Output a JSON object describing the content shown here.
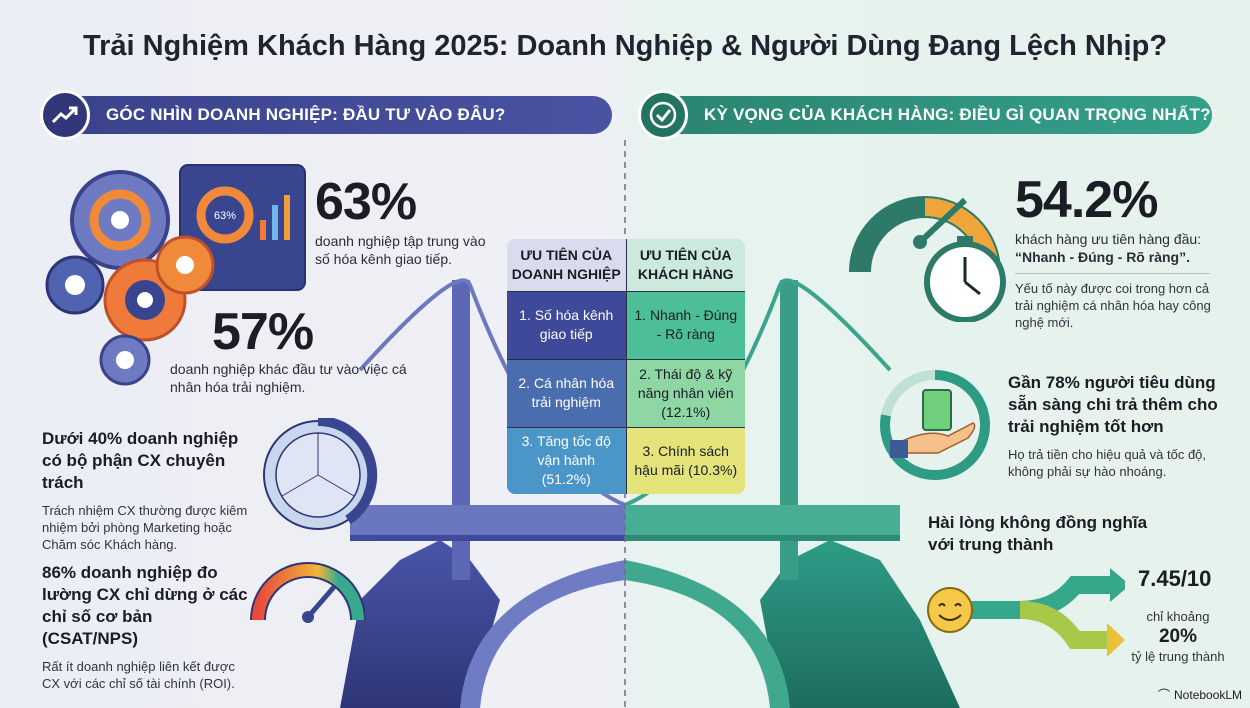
{
  "title": "Trải Nghiệm Khách Hàng 2025: Doanh Nghiệp & Người Dùng Đang Lệch Nhịp?",
  "left_banner": {
    "label": "GÓC NHÌN DOANH NGHIỆP: ĐẦU TƯ VÀO ĐÂU?",
    "icon": "trend-up-icon",
    "color": "#3f4791"
  },
  "right_banner": {
    "label": "KỲ VỌNG CỦA KHÁCH HÀNG: ĐIỀU GÌ QUAN TRỌNG NHẤT?",
    "icon": "check-circle-icon",
    "color": "#2e8b78"
  },
  "left": {
    "stat1": {
      "value": "63%",
      "text": "doanh nghiệp tập trung vào số hóa kênh giao tiếp.",
      "icon_label": "63%"
    },
    "stat2": {
      "value": "57%",
      "text": "doanh nghiệp khác đầu tư vào việc cá nhân hóa trải nghiệm."
    },
    "stat3": {
      "heading": "Dưới 40% doanh nghiệp có bộ phận CX chuyên trách",
      "text": "Trách nhiệm CX thường được kiêm nhiệm bởi phòng Marketing hoặc Chăm sóc Khách hàng."
    },
    "stat4": {
      "heading": "86% doanh nghiệp đo lường CX chỉ dừng ở các chỉ số cơ bản (CSAT/NPS)",
      "text": "Rất ít doanh nghiệp liên kết được CX với các chỉ số tài chính (ROI)."
    }
  },
  "table": {
    "headers": [
      "ƯU TIÊN CỦA DOANH NGHIỆP",
      "ƯU TIÊN CỦA KHÁCH HÀNG"
    ],
    "rows": [
      [
        "1. Số hóa kênh giao tiếp",
        "1. Nhanh - Đúng - Rõ ràng"
      ],
      [
        "2. Cá nhân hóa trải nghiệm",
        "2. Thái độ & kỹ năng nhân viên (12.1%)"
      ],
      [
        "3. Tăng tốc độ vận hành (51.2%)",
        "3. Chính sách hậu mãi (10.3%)"
      ]
    ]
  },
  "right": {
    "stat1": {
      "value": "54.2%",
      "text": "khách hàng ưu tiên hàng đầu:",
      "quote": "“Nhanh - Đúng - Rõ ràng”.",
      "note": "Yếu tố này được coi trong hơn cả trải nghiệm cá nhân hóa hay công nghệ mới."
    },
    "stat2": {
      "heading": "Gần 78% người tiêu dùng sẵn sàng chi trả thêm cho trải nghiệm tốt hơn",
      "text": "Họ trả tiền cho hiệu quả và tốc độ, không phải sự hào nhoáng.",
      "ring_fraction": 0.78
    },
    "stat3": {
      "heading": "Hài lòng không đồng nghĩa với trung thành",
      "satisfaction": "7.45/10",
      "loyalty_prefix": "chỉ khoảng",
      "loyalty": "20%",
      "loyalty_label": "tỷ lệ trung thành"
    }
  },
  "brand": "NotebookLM"
}
